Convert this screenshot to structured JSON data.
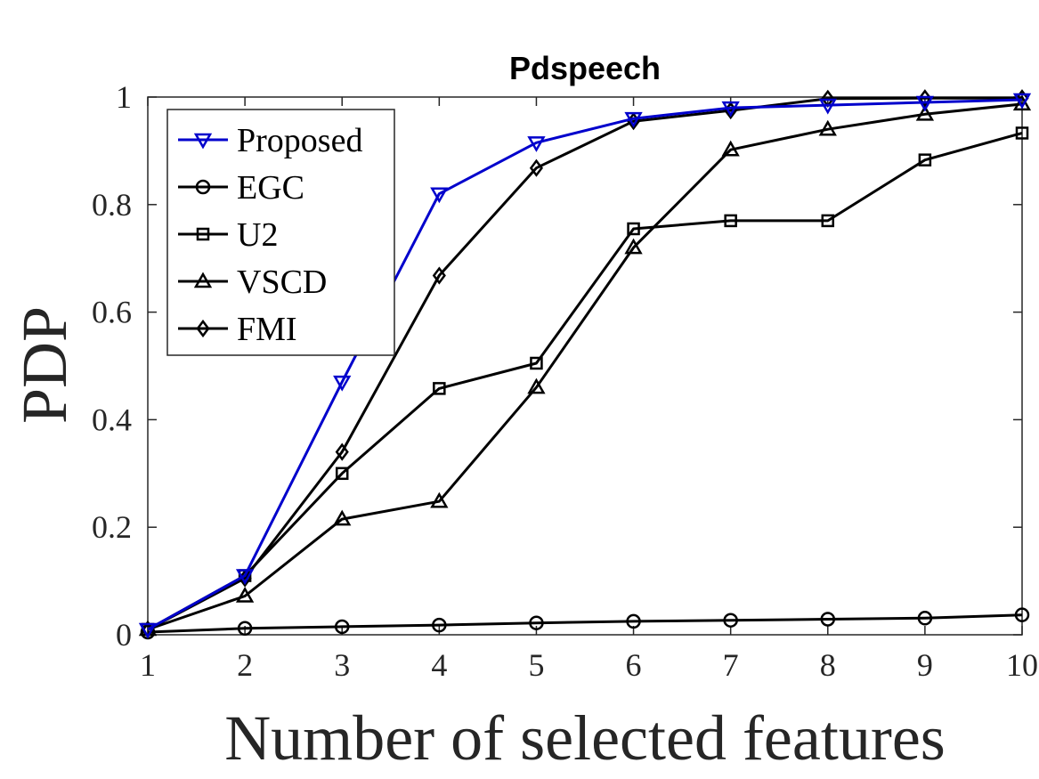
{
  "chart_data": {
    "type": "line",
    "title": "Pdspeech",
    "xlabel": "Number of selected features",
    "ylabel": "PDP",
    "xlim": [
      1,
      10
    ],
    "ylim": [
      0,
      1
    ],
    "x": [
      1,
      2,
      3,
      4,
      5,
      6,
      7,
      8,
      9,
      10
    ],
    "xticks": [
      "1",
      "2",
      "3",
      "4",
      "5",
      "6",
      "7",
      "8",
      "9",
      "10"
    ],
    "yticks": [
      "0",
      "0.2",
      "0.4",
      "0.6",
      "0.8",
      "1"
    ],
    "ytick_values": [
      0,
      0.2,
      0.4,
      0.6,
      0.8,
      1
    ],
    "grid": false,
    "legend_position": "top-left",
    "series": [
      {
        "name": "Proposed",
        "color": "#0000cc",
        "marker": "triangle-down",
        "values": [
          0.01,
          0.11,
          0.47,
          0.82,
          0.915,
          0.96,
          0.98,
          0.985,
          0.99,
          0.995
        ]
      },
      {
        "name": "EGC",
        "color": "#000000",
        "marker": "circle",
        "values": [
          0.005,
          0.012,
          0.015,
          0.018,
          0.022,
          0.025,
          0.027,
          0.029,
          0.031,
          0.037
        ]
      },
      {
        "name": "U2",
        "color": "#000000",
        "marker": "square",
        "values": [
          0.01,
          0.11,
          0.3,
          0.458,
          0.505,
          0.755,
          0.77,
          0.77,
          0.883,
          0.933
        ]
      },
      {
        "name": "VSCD",
        "color": "#000000",
        "marker": "triangle-up",
        "values": [
          0.01,
          0.072,
          0.215,
          0.248,
          0.46,
          0.72,
          0.902,
          0.94,
          0.968,
          0.987
        ]
      },
      {
        "name": "FMI",
        "color": "#000000",
        "marker": "diamond",
        "values": [
          0.01,
          0.105,
          0.34,
          0.668,
          0.868,
          0.955,
          0.975,
          0.997,
          0.998,
          0.998
        ]
      }
    ]
  }
}
